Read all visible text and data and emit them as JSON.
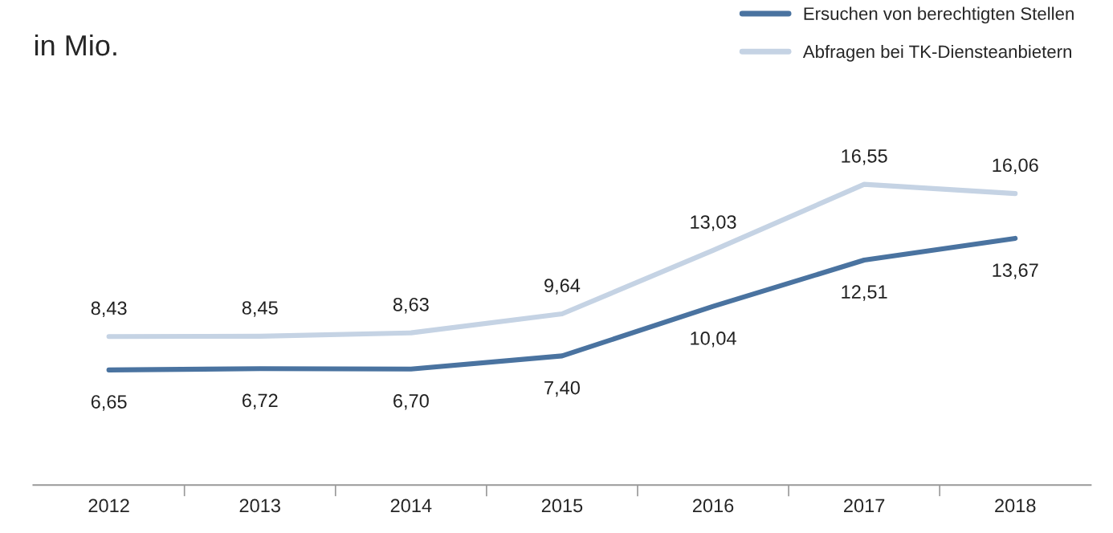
{
  "chart_data": {
    "type": "line",
    "ylabel": "in Mio.",
    "categories": [
      "2012",
      "2013",
      "2014",
      "2015",
      "2016",
      "2017",
      "2018"
    ],
    "series": [
      {
        "name": "Ersuchen von berechtigten Stellen",
        "color": "#4a73a0",
        "values": [
          6.65,
          6.72,
          6.7,
          7.4,
          10.04,
          12.51,
          13.67
        ],
        "value_labels": [
          "6,65",
          "6,72",
          "6,70",
          "7,40",
          "10,04",
          "12,51",
          "13,67"
        ]
      },
      {
        "name": "Abfragen bei TK-Diensteanbietern",
        "color": "#c5d3e4",
        "values": [
          8.43,
          8.45,
          8.63,
          9.64,
          13.03,
          16.55,
          16.06
        ],
        "value_labels": [
          "8,43",
          "8,45",
          "8,63",
          "9,64",
          "13,03",
          "16,55",
          "16,06"
        ]
      }
    ],
    "tick_labels": "x",
    "legend": "top right",
    "grid": false,
    "marker": "none",
    "line_style": "solid"
  }
}
